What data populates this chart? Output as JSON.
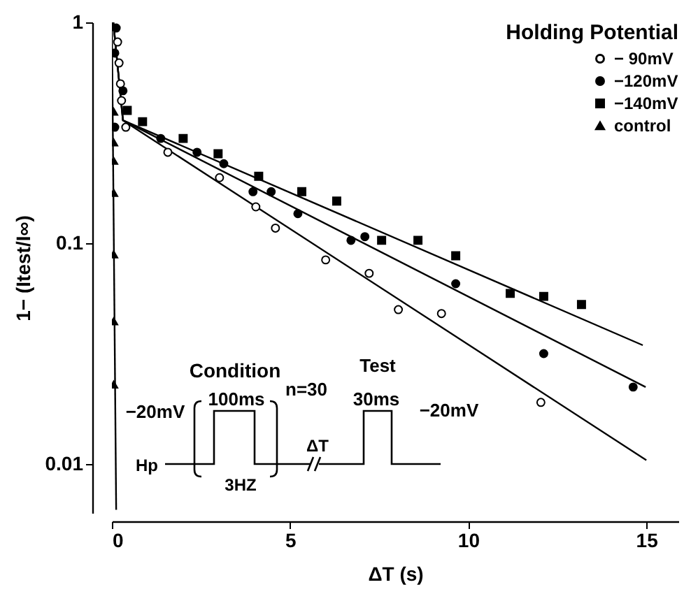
{
  "chart_data": {
    "type": "scatter",
    "xlabel": "ΔT (s)",
    "ylabel": "1− (Itest/I∞)",
    "legend_title": "Holding Potential",
    "log": "y",
    "xlim": [
      0,
      15.9
    ],
    "ylim": [
      0.006,
      1
    ],
    "xticks": [
      0,
      5,
      10,
      15
    ],
    "yticks": [
      0.01,
      0.1,
      1
    ],
    "grid": false,
    "legend": "top right",
    "annotations": [
      "Condition",
      "100ms",
      "n=30",
      "−20mV",
      "Hp",
      "3HZ",
      "ΔT",
      "Test",
      "30ms",
      "−20mV"
    ],
    "series": [
      {
        "name": "− 90mV",
        "color": "#ffffff",
        "marker": "circle",
        "x": [
          0.16,
          0.2,
          0.24,
          0.27,
          0.39,
          1.57,
          3.02,
          4.04,
          4.59,
          6.0,
          7.22,
          8.04,
          9.25,
          12.04
        ],
        "values": [
          0.815,
          0.655,
          0.527,
          0.442,
          0.335,
          0.258,
          0.198,
          0.146,
          0.117,
          0.084,
          0.073,
          0.05,
          0.048,
          0.019
        ]
      },
      {
        "name": "−120mV",
        "color": "#000000",
        "marker": "circle",
        "x": [
          0.12,
          0.08,
          0.31,
          0.08,
          1.37,
          2.39,
          3.14,
          3.96,
          4.47,
          5.22,
          6.71,
          7.1,
          9.65,
          12.12,
          14.63
        ],
        "values": [
          0.943,
          0.726,
          0.49,
          0.335,
          0.298,
          0.258,
          0.229,
          0.171,
          0.171,
          0.136,
          0.103,
          0.107,
          0.0655,
          0.0316,
          0.0223
        ]
      },
      {
        "name": "−140mV",
        "color": "#000000",
        "marker": "square",
        "x": [
          0.43,
          0.86,
          2.0,
          2.98,
          4.12,
          5.33,
          6.31,
          7.57,
          8.59,
          9.65,
          11.18,
          12.12,
          13.18
        ],
        "values": [
          0.399,
          0.355,
          0.298,
          0.254,
          0.201,
          0.171,
          0.155,
          0.103,
          0.103,
          0.0877,
          0.0592,
          0.0574,
          0.0527
        ]
      },
      {
        "name": "control",
        "color": "#000000",
        "marker": "triangle",
        "x": [
          0.05,
          0.05,
          0.05,
          0.05,
          0.05,
          0.05,
          0.05
        ],
        "values": [
          0.394,
          0.286,
          0.236,
          0.169,
          0.089,
          0.0443,
          0.0229
        ]
      },
      {
        "type": "line",
        "color": "#000000",
        "line_style": "solid",
        "x": [
          0.04,
          0.31,
          15.0
        ],
        "values": [
          1,
          0.36,
          0.0104
        ]
      },
      {
        "type": "line",
        "color": "#000000",
        "line_style": "solid",
        "x": [
          0.04,
          0.31,
          14.98
        ],
        "values": [
          1,
          0.36,
          0.0223
        ]
      },
      {
        "type": "line",
        "color": "#000000",
        "line_style": "solid",
        "x": [
          0.04,
          0.31,
          14.9
        ],
        "values": [
          1,
          0.36,
          0.0345
        ]
      },
      {
        "type": "line",
        "color": "#000000",
        "line_style": "solid",
        "x": [
          0.0,
          0.12
        ],
        "values": [
          1,
          0.0062
        ]
      }
    ]
  }
}
